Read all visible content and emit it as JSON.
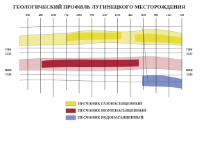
{
  "title": "ГЕОЛОГИЧЕСКИЙ ПРОФИЛЬ ЛУГИНЕЦКОГО МЕСТОРОЖДЕНИЯ",
  "wells": [
    856,
    488,
    1199,
    774,
    1081,
    790,
    1167,
    1153,
    442,
    1158,
    995,
    1121,
    158
  ],
  "contacts": {
    "left": [
      {
        "label": "ГВК",
        "depth": 2222
      },
      {
        "label": "ВНК",
        "depth": 2244
      }
    ],
    "right": [
      {
        "label": "ГВК",
        "depth": 2222
      },
      {
        "label": "ВНК",
        "depth": 2244
      }
    ]
  },
  "legend": [
    {
      "label": "ПЕСЧАНИК ГАЗОНАСЫЩЕННЫЙ",
      "color": "#e8e04a"
    },
    {
      "label": "ПЕСЧАНИК НЕФТЕНАСЫЩЕННЫЙ",
      "color": "#a8283a"
    },
    {
      "label": "ПЕСЧАНИК ВОДОНАСЫЩЕННЫЙ",
      "color": "#8090c8"
    }
  ]
}
